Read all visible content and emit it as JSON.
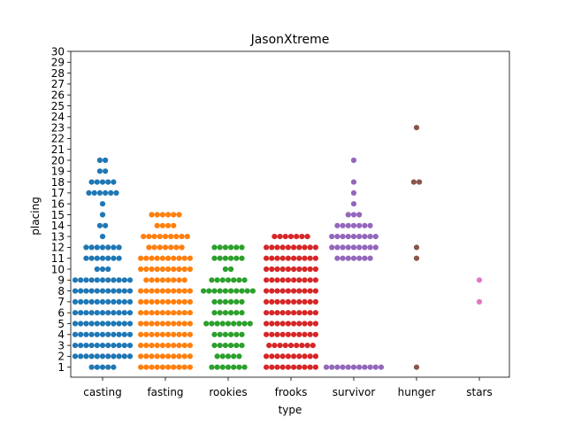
{
  "chart_data": {
    "type": "swarm",
    "title": "JasonXtreme",
    "xlabel": "type",
    "ylabel": "placing",
    "ylim": [
      0,
      30
    ],
    "yticks": [
      1,
      2,
      3,
      4,
      5,
      6,
      7,
      8,
      9,
      10,
      11,
      12,
      13,
      14,
      15,
      16,
      17,
      18,
      19,
      20,
      21,
      22,
      23,
      24,
      25,
      26,
      27,
      28,
      29,
      30
    ],
    "grid": false,
    "legend": "none",
    "categories": [
      "casting",
      "fasting",
      "rookies",
      "frooks",
      "survivor",
      "hunger",
      "stars"
    ],
    "series": [
      {
        "category": "casting",
        "color": "#1f77b4",
        "counts": {
          "1": 5,
          "2": 11,
          "3": 11,
          "4": 11,
          "5": 11,
          "6": 11,
          "7": 11,
          "8": 11,
          "9": 11,
          "10": 3,
          "11": 7,
          "12": 7,
          "13": 1,
          "14": 2,
          "15": 1,
          "16": 1,
          "17": 6,
          "18": 5,
          "19": 2,
          "20": 2
        }
      },
      {
        "category": "fasting",
        "color": "#ff7f0e",
        "counts": {
          "1": 10,
          "2": 10,
          "3": 10,
          "4": 10,
          "5": 10,
          "6": 10,
          "7": 10,
          "8": 10,
          "9": 8,
          "10": 10,
          "11": 10,
          "12": 7,
          "13": 9,
          "14": 4,
          "15": 6
        }
      },
      {
        "category": "rookies",
        "color": "#2ca02c",
        "counts": {
          "1": 7,
          "2": 5,
          "3": 6,
          "4": 6,
          "5": 9,
          "6": 6,
          "7": 6,
          "8": 10,
          "9": 7,
          "10": 2,
          "11": 6,
          "12": 6
        }
      },
      {
        "category": "frooks",
        "color": "#d62728",
        "counts": {
          "1": 10,
          "2": 10,
          "3": 9,
          "4": 10,
          "5": 10,
          "6": 10,
          "7": 10,
          "8": 10,
          "9": 10,
          "10": 10,
          "11": 10,
          "12": 10,
          "13": 7
        }
      },
      {
        "category": "survivor",
        "color": "#9467bd",
        "counts": {
          "1": 11,
          "11": 7,
          "12": 9,
          "13": 9,
          "14": 7,
          "15": 3,
          "16": 1,
          "17": 1,
          "18": 1,
          "20": 1
        }
      },
      {
        "category": "hunger",
        "color": "#8c564b",
        "counts": {
          "1": 1,
          "11": 1,
          "12": 1,
          "18": 2,
          "23": 1
        }
      },
      {
        "category": "stars",
        "color": "#e377c2",
        "counts": {
          "7": 1,
          "9": 1
        }
      }
    ]
  }
}
